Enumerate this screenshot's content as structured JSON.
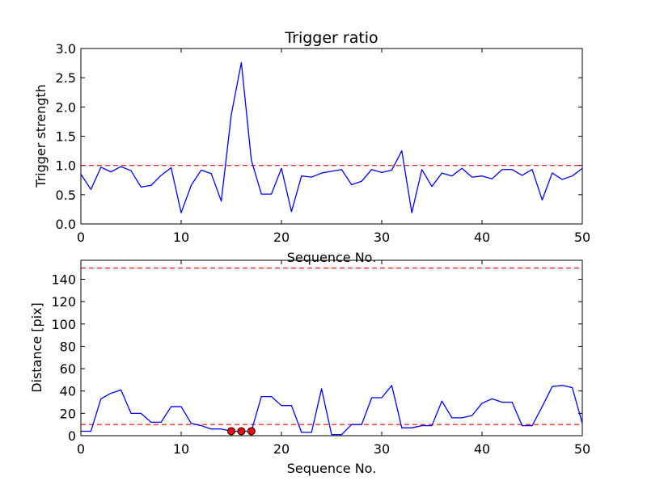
{
  "chart_data": [
    {
      "type": "line",
      "title": "Trigger ratio",
      "xlabel": "Sequence No.",
      "ylabel": "Trigger strength",
      "xlim": [
        0,
        50
      ],
      "ylim": [
        0,
        3.0
      ],
      "xticks": [
        "0",
        "10",
        "20",
        "30",
        "40",
        "50"
      ],
      "yticks": [
        "0.0",
        "0.5",
        "1.0",
        "1.5",
        "2.0",
        "2.5",
        "3.0"
      ],
      "grid": false,
      "series": [
        {
          "color": "#0000ff",
          "x": [
            0,
            1,
            2,
            3,
            4,
            5,
            6,
            7,
            8,
            9,
            10,
            11,
            12,
            13,
            14,
            15,
            16,
            17,
            18,
            19,
            20,
            21,
            22,
            23,
            24,
            25,
            26,
            27,
            28,
            29,
            30,
            31,
            32,
            33,
            34,
            35,
            36,
            37,
            38,
            39,
            40,
            41,
            42,
            43,
            44,
            45,
            46,
            47,
            48,
            49,
            50
          ],
          "values": [
            0.85,
            0.59,
            0.97,
            0.89,
            0.98,
            0.91,
            0.63,
            0.66,
            0.83,
            0.96,
            0.19,
            0.66,
            0.92,
            0.86,
            0.39,
            1.87,
            2.76,
            1.09,
            0.51,
            0.51,
            0.95,
            0.21,
            0.82,
            0.8,
            0.87,
            0.9,
            0.93,
            0.67,
            0.73,
            0.93,
            0.88,
            0.92,
            1.25,
            0.19,
            0.93,
            0.64,
            0.87,
            0.82,
            0.95,
            0.8,
            0.82,
            0.77,
            0.93,
            0.93,
            0.83,
            0.93,
            0.41,
            0.87,
            0.76,
            0.82,
            0.95
          ]
        }
      ],
      "reference_lines": [
        {
          "y": 1.0,
          "color": "#ff0000",
          "style": "dashed"
        }
      ]
    },
    {
      "type": "line",
      "title": "",
      "xlabel": "Sequence No.",
      "ylabel": "Distance [pix]",
      "xlim": [
        0,
        50
      ],
      "ylim": [
        0,
        157
      ],
      "xticks": [
        "0",
        "10",
        "20",
        "30",
        "40",
        "50"
      ],
      "yticks": [
        "0",
        "20",
        "40",
        "60",
        "80",
        "100",
        "120",
        "140"
      ],
      "grid": false,
      "series": [
        {
          "color": "#0000ff",
          "x": [
            0,
            1,
            2,
            3,
            4,
            5,
            6,
            7,
            8,
            9,
            10,
            11,
            12,
            13,
            14,
            15,
            16,
            17,
            18,
            19,
            20,
            21,
            22,
            23,
            24,
            25,
            26,
            27,
            28,
            29,
            30,
            31,
            32,
            33,
            34,
            35,
            36,
            37,
            38,
            39,
            40,
            41,
            42,
            43,
            44,
            45,
            46,
            47,
            48,
            49,
            50
          ],
          "values": [
            4,
            4,
            33,
            38,
            41,
            20,
            20,
            12,
            12,
            26,
            26,
            11,
            9,
            6,
            6,
            4,
            4,
            4,
            35,
            35,
            27,
            27,
            3,
            3,
            42,
            1,
            1,
            10,
            10,
            34,
            34,
            45,
            7,
            7,
            9,
            9,
            31,
            16,
            16,
            18,
            29,
            33,
            30,
            30,
            9,
            9,
            26,
            44,
            45,
            43,
            11
          ]
        }
      ],
      "markers": [
        {
          "x": 15,
          "y": 4,
          "color": "#ff0000"
        },
        {
          "x": 16,
          "y": 4,
          "color": "#ff0000"
        },
        {
          "x": 17,
          "y": 4,
          "color": "#ff0000"
        }
      ],
      "reference_lines": [
        {
          "y": 150,
          "color": "#ff0000",
          "style": "dashed"
        },
        {
          "y": 10,
          "color": "#ff0000",
          "style": "dashed"
        }
      ]
    }
  ]
}
